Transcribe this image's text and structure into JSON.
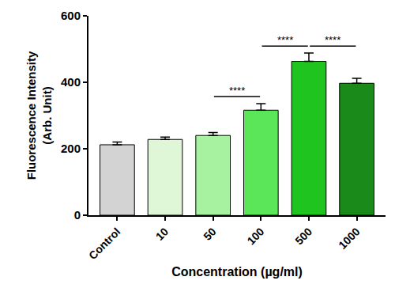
{
  "chart_data": {
    "type": "bar",
    "x_label": "Concentration (µg/ml)",
    "y_label": "Fluorescence Intensity\n(Arb. Unit)",
    "categories": [
      "Control",
      "10",
      "50",
      "100",
      "500",
      "1000"
    ],
    "values": [
      212,
      228,
      240,
      316,
      463,
      397
    ],
    "errors": [
      8,
      7,
      9,
      20,
      25,
      15
    ],
    "colors": [
      "#d3d3d3",
      "#dff7d6",
      "#a6f2a0",
      "#5be65a",
      "#1fc41f",
      "#1a8a1a"
    ],
    "ylim": [
      0,
      600
    ],
    "yticks": [
      0,
      200,
      400,
      600
    ],
    "grid": false,
    "annotations": [
      {
        "text": "****",
        "between": [
          "50",
          "100"
        ]
      },
      {
        "text": "****",
        "between": [
          "100",
          "500"
        ]
      },
      {
        "text": "****",
        "between": [
          "500",
          "1000"
        ]
      }
    ]
  }
}
